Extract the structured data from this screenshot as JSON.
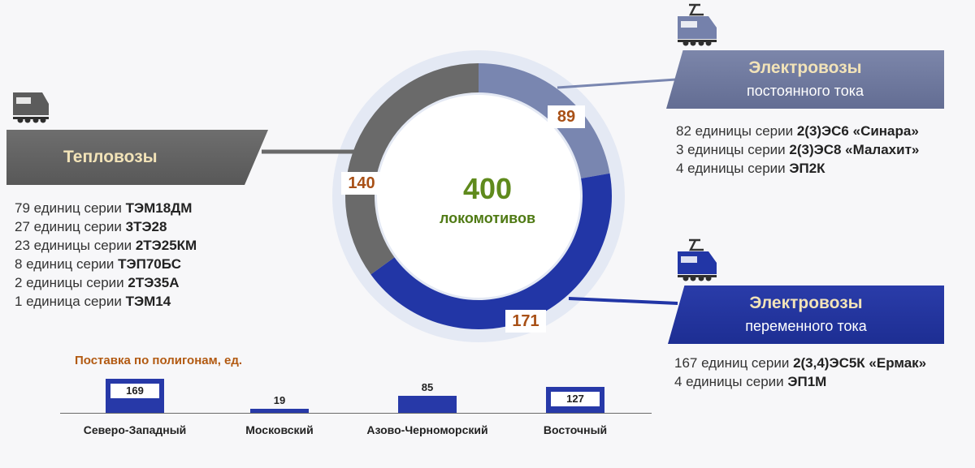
{
  "chart_data": [
    {
      "type": "pie",
      "donut": true,
      "center": {
        "value": "400",
        "label": "локомотивов"
      },
      "slices": [
        {
          "label": "Электровозы постоянного тока",
          "value": 89,
          "color": "#7986b0"
        },
        {
          "label": "Электровозы переменного тока",
          "value": 171,
          "color": "#2236a6"
        },
        {
          "label": "Тепловозы",
          "value": 140,
          "color": "#6a6a6a"
        }
      ]
    },
    {
      "type": "bar",
      "title": "Поставка по полигонам, ед.",
      "categories": [
        "Северо-Западный",
        "Московский",
        "Азово-Черноморский",
        "Восточный"
      ],
      "values": [
        169,
        19,
        85,
        127
      ],
      "color": "#2739a8"
    }
  ],
  "groups": {
    "teplo": {
      "title": "Тепловозы",
      "items": [
        {
          "text": "79 единиц серии ",
          "series": "ТЭМ18ДМ"
        },
        {
          "text": "27 единиц серии ",
          "series": "3ТЭ28"
        },
        {
          "text": "23 единицы серии ",
          "series": "2ТЭ25КМ"
        },
        {
          "text": "8 единиц серии ",
          "series": "ТЭП70БС"
        },
        {
          "text": "2 единицы серии ",
          "series": "2ТЭ35А"
        },
        {
          "text": "1 единица серии ",
          "series": "ТЭМ14"
        }
      ]
    },
    "dc": {
      "title": "Электровозы",
      "subtitle": "постоянного тока",
      "items": [
        {
          "text": "82 единицы серии ",
          "series": "2(3)ЭС6 «Синара»"
        },
        {
          "text": "3 единицы серии ",
          "series": "2(3)ЭС8 «Малахит»"
        },
        {
          "text": "4 единицы серии ",
          "series": "ЭП2К"
        }
      ]
    },
    "ac": {
      "title": "Электровозы",
      "subtitle": "переменного тока",
      "items": [
        {
          "text": "167 единиц серии ",
          "series": "2(3,4)ЭС5К «Ермак»"
        },
        {
          "text": "4 единицы серии ",
          "series": "ЭП1М"
        }
      ]
    }
  },
  "icons": {
    "teplo": "diesel-locomotive-icon",
    "dc": "electric-locomotive-icon",
    "ac": "electric-locomotive-icon"
  }
}
